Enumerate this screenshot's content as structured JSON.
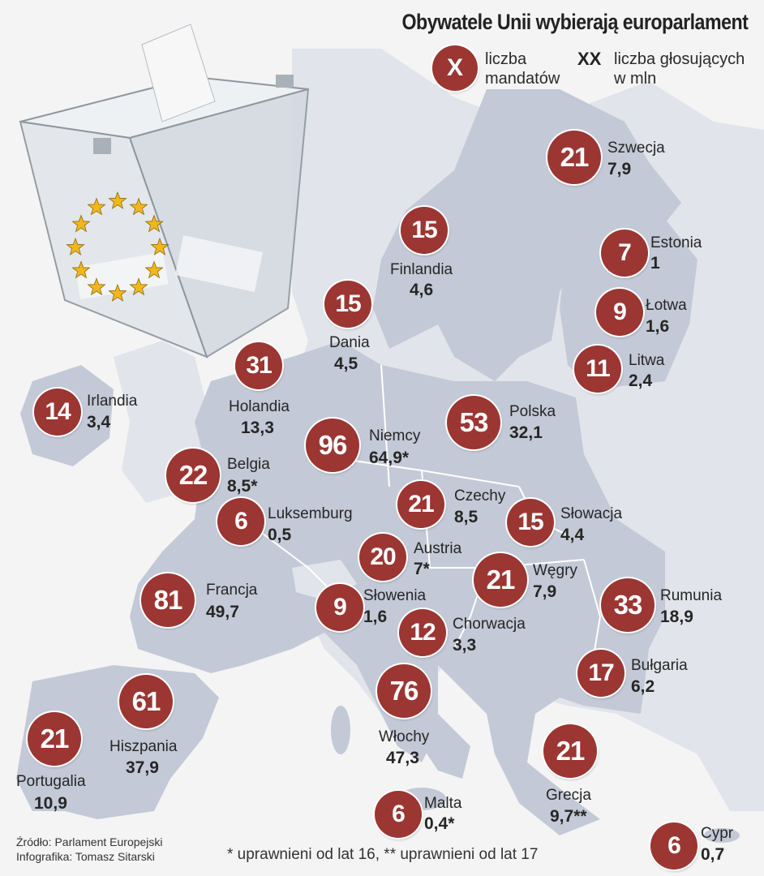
{
  "title": "Obywatele Unii wybierają europarlament",
  "legend": {
    "seats_symbol": "X",
    "seats_label_line1": "liczba",
    "seats_label_line2": "mandatów",
    "voters_symbol": "XX",
    "voters_label_line1": "liczba głosujących",
    "voters_label_line2": "w mln"
  },
  "countries": [
    {
      "name": "Szwecja",
      "seats": "21",
      "voters": "7,9"
    },
    {
      "name": "Estonia",
      "seats": "7",
      "voters": "1"
    },
    {
      "name": "Łotwa",
      "seats": "9",
      "voters": "1,6"
    },
    {
      "name": "Litwa",
      "seats": "11",
      "voters": "2,4"
    },
    {
      "name": "Finlandia",
      "seats": "15",
      "voters": "4,6"
    },
    {
      "name": "Dania",
      "seats": "15",
      "voters": "4,5"
    },
    {
      "name": "Holandia",
      "seats": "31",
      "voters": "13,3"
    },
    {
      "name": "Irlandia",
      "seats": "14",
      "voters": "3,4"
    },
    {
      "name": "Polska",
      "seats": "53",
      "voters": "32,1"
    },
    {
      "name": "Niemcy",
      "seats": "96",
      "voters": "64,9*"
    },
    {
      "name": "Belgia",
      "seats": "22",
      "voters": "8,5*"
    },
    {
      "name": "Luksemburg",
      "seats": "6",
      "voters": "0,5"
    },
    {
      "name": "Czechy",
      "seats": "21",
      "voters": "8,5"
    },
    {
      "name": "Słowacja",
      "seats": "15",
      "voters": "4,4"
    },
    {
      "name": "Austria",
      "seats": "20",
      "voters": "7*"
    },
    {
      "name": "Węgry",
      "seats": "21",
      "voters": "7,9"
    },
    {
      "name": "Francja",
      "seats": "81",
      "voters": "49,7"
    },
    {
      "name": "Słowenia",
      "seats": "9",
      "voters": "1,6"
    },
    {
      "name": "Rumunia",
      "seats": "33",
      "voters": "18,9"
    },
    {
      "name": "Chorwacja",
      "seats": "12",
      "voters": "3,3"
    },
    {
      "name": "Bułgaria",
      "seats": "17",
      "voters": "6,2"
    },
    {
      "name": "Hiszpania",
      "seats": "61",
      "voters": "37,9"
    },
    {
      "name": "Włochy",
      "seats": "76",
      "voters": "47,3"
    },
    {
      "name": "Portugalia",
      "seats": "21",
      "voters": "10,9"
    },
    {
      "name": "Grecja",
      "seats": "21",
      "voters": "9,7**"
    },
    {
      "name": "Malta",
      "seats": "6",
      "voters": "0,4*"
    },
    {
      "name": "Cypr",
      "seats": "6",
      "voters": "0,7"
    }
  ],
  "source_line1": "Źródło: Parlament Europejski",
  "source_line2": "Infografika: Tomasz Sitarski",
  "footnote": "* uprawnieni od lat 16, ** uprawnieni od lat 17",
  "colors": {
    "badge": "#9b3632",
    "land": "#c3c9d6",
    "land_light": "#e1e4ea",
    "sea": "#f4f4f5",
    "star": "#f2b61d"
  },
  "icons": [
    "ballot-box-icon",
    "eu-star-icon"
  ]
}
